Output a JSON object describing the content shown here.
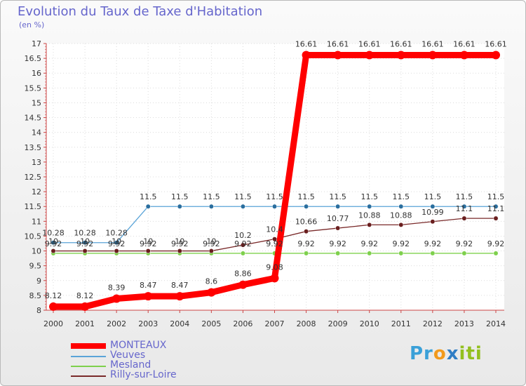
{
  "chart_data": {
    "type": "line",
    "title": "Evolution du Taux de Taxe d'Habitation",
    "unit_label": "(en %)",
    "x": [
      "2000",
      "2001",
      "2002",
      "2003",
      "2004",
      "2005",
      "2006",
      "2007",
      "2008",
      "2009",
      "2010",
      "2011",
      "2012",
      "2013",
      "2014"
    ],
    "ylim": [
      8,
      17
    ],
    "yticks": [
      "8",
      "8.5",
      "9",
      "9.5",
      "10",
      "10.5",
      "11",
      "11.5",
      "12",
      "12.5",
      "13",
      "13.5",
      "14",
      "14.5",
      "15",
      "15.5",
      "16",
      "16.5",
      "17"
    ],
    "series": [
      {
        "name": "MONTEAUX",
        "color": "#ff0000",
        "values": [
          8.12,
          8.12,
          8.39,
          8.47,
          8.47,
          8.6,
          8.86,
          9.08,
          16.61,
          16.61,
          16.61,
          16.61,
          16.61,
          16.61,
          16.61
        ],
        "labels": [
          "8.12",
          "8.12",
          "8.39",
          "8.47",
          "8.47",
          "8.6",
          "8.86",
          "9.08",
          "16.61",
          "16.61",
          "16.61",
          "16.61",
          "16.61",
          "16.61",
          "16.61"
        ]
      },
      {
        "name": "Veuves",
        "color": "#5aa4d8",
        "marker_color": "#2a6e9e",
        "values": [
          10.28,
          10.28,
          10.28,
          11.5,
          11.5,
          11.5,
          11.5,
          11.5,
          11.5,
          11.5,
          11.5,
          11.5,
          11.5,
          11.5,
          11.5
        ],
        "labels": [
          "10.28",
          "10.28",
          "10.28",
          "11.5",
          "11.5",
          "11.5",
          "11.5",
          "11.5",
          "11.5",
          "11.5",
          "11.5",
          "11.5",
          "11.5",
          "11.5",
          "11.5"
        ]
      },
      {
        "name": "Mesland",
        "color": "#7ed04c",
        "marker_color": "#7ed04c",
        "values": [
          9.92,
          9.92,
          9.92,
          9.92,
          9.92,
          9.92,
          9.92,
          9.92,
          9.92,
          9.92,
          9.92,
          9.92,
          9.92,
          9.92,
          9.92
        ],
        "labels": [
          "9.92",
          "9.92",
          "9.92",
          "9.92",
          "9.92",
          "9.92",
          "9.92",
          "9.92",
          "9.92",
          "9.92",
          "9.92",
          "9.92",
          "9.92",
          "9.92",
          "9.92"
        ]
      },
      {
        "name": "Rilly-sur-Loire",
        "color": "#7a2a2a",
        "marker_color": "#6a1f1f",
        "values": [
          10,
          10,
          10,
          10,
          10,
          10,
          10.2,
          10.4,
          10.66,
          10.77,
          10.88,
          10.88,
          10.99,
          11.1,
          11.1
        ],
        "labels": [
          "10",
          "10",
          "10",
          "10",
          "10",
          "10",
          "10.2",
          "10.4",
          "10.66",
          "10.77",
          "10.88",
          "10.88",
          "10.99",
          "11.1",
          "11.1"
        ]
      }
    ],
    "legend": [
      "MONTEAUX",
      "Veuves",
      "Mesland",
      "Rilly-sur-Loire"
    ]
  },
  "brand": {
    "parts": [
      "Pr",
      "o",
      "x",
      "iti"
    ]
  }
}
